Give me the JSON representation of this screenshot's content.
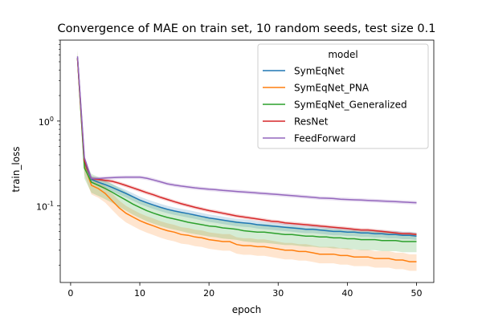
{
  "chart_data": {
    "type": "line",
    "title": "Convergence of MAE on train set, 10 random seeds, test size 0.1",
    "xlabel": "epoch",
    "ylabel": "train_loss",
    "yscale": "log",
    "xlim": [
      -1.5,
      52.5
    ],
    "ylim": [
      0.0125,
      9.0
    ],
    "x_ticks": [
      0,
      10,
      20,
      30,
      40,
      50
    ],
    "y_ticks": [
      {
        "value": 1.0,
        "label": "10^0"
      },
      {
        "value": 0.1,
        "label": "10^-1"
      }
    ],
    "grid": false,
    "legend": {
      "title": "model",
      "position": "top-right"
    },
    "x": [
      1,
      2,
      3,
      4,
      5,
      6,
      7,
      8,
      9,
      10,
      11,
      12,
      13,
      14,
      15,
      16,
      17,
      18,
      19,
      20,
      21,
      22,
      23,
      24,
      25,
      26,
      27,
      28,
      29,
      30,
      31,
      32,
      33,
      34,
      35,
      36,
      37,
      38,
      39,
      40,
      41,
      42,
      43,
      44,
      45,
      46,
      47,
      48,
      49,
      50
    ],
    "series": [
      {
        "name": "SymEqNet",
        "color": "#1f77b4",
        "values": [
          5.6,
          0.32,
          0.205,
          0.19,
          0.178,
          0.165,
          0.152,
          0.14,
          0.128,
          0.117,
          0.109,
          0.102,
          0.096,
          0.091,
          0.087,
          0.084,
          0.081,
          0.078,
          0.075,
          0.072,
          0.07,
          0.068,
          0.066,
          0.064,
          0.063,
          0.062,
          0.06,
          0.059,
          0.058,
          0.057,
          0.056,
          0.055,
          0.054,
          0.053,
          0.053,
          0.052,
          0.051,
          0.05,
          0.05,
          0.049,
          0.049,
          0.048,
          0.048,
          0.047,
          0.047,
          0.046,
          0.046,
          0.045,
          0.045,
          0.044
        ]
      },
      {
        "name": "SymEqNet_PNA",
        "color": "#ff7f0e",
        "values": [
          5.4,
          0.3,
          0.175,
          0.16,
          0.14,
          0.115,
          0.095,
          0.082,
          0.074,
          0.067,
          0.062,
          0.058,
          0.054,
          0.051,
          0.049,
          0.046,
          0.045,
          0.043,
          0.042,
          0.04,
          0.039,
          0.038,
          0.038,
          0.035,
          0.034,
          0.034,
          0.033,
          0.033,
          0.032,
          0.031,
          0.03,
          0.03,
          0.029,
          0.029,
          0.028,
          0.027,
          0.027,
          0.027,
          0.026,
          0.026,
          0.025,
          0.025,
          0.025,
          0.024,
          0.024,
          0.024,
          0.023,
          0.023,
          0.022,
          0.022
        ]
      },
      {
        "name": "SymEqNet_Generalized",
        "color": "#2ca02c",
        "values": [
          5.5,
          0.28,
          0.19,
          0.175,
          0.16,
          0.145,
          0.13,
          0.117,
          0.105,
          0.096,
          0.088,
          0.082,
          0.077,
          0.073,
          0.07,
          0.067,
          0.064,
          0.062,
          0.06,
          0.058,
          0.057,
          0.055,
          0.054,
          0.053,
          0.051,
          0.05,
          0.049,
          0.049,
          0.048,
          0.047,
          0.046,
          0.046,
          0.045,
          0.044,
          0.044,
          0.043,
          0.043,
          0.042,
          0.042,
          0.041,
          0.041,
          0.04,
          0.04,
          0.04,
          0.039,
          0.039,
          0.039,
          0.038,
          0.038,
          0.038
        ]
      },
      {
        "name": "ResNet",
        "color": "#d62728",
        "values": [
          5.5,
          0.34,
          0.21,
          0.205,
          0.2,
          0.195,
          0.185,
          0.174,
          0.163,
          0.153,
          0.143,
          0.135,
          0.126,
          0.119,
          0.112,
          0.106,
          0.101,
          0.096,
          0.092,
          0.088,
          0.085,
          0.082,
          0.079,
          0.076,
          0.074,
          0.072,
          0.07,
          0.068,
          0.066,
          0.065,
          0.063,
          0.062,
          0.061,
          0.06,
          0.059,
          0.058,
          0.057,
          0.056,
          0.055,
          0.054,
          0.053,
          0.052,
          0.052,
          0.051,
          0.05,
          0.049,
          0.048,
          0.047,
          0.047,
          0.046
        ]
      },
      {
        "name": "FeedForward",
        "color": "#9467bd",
        "values": [
          5.8,
          0.37,
          0.21,
          0.21,
          0.213,
          0.215,
          0.217,
          0.218,
          0.218,
          0.218,
          0.212,
          0.202,
          0.192,
          0.182,
          0.176,
          0.171,
          0.167,
          0.163,
          0.16,
          0.157,
          0.155,
          0.152,
          0.15,
          0.148,
          0.146,
          0.144,
          0.142,
          0.14,
          0.138,
          0.136,
          0.134,
          0.132,
          0.13,
          0.128,
          0.126,
          0.124,
          0.123,
          0.122,
          0.12,
          0.119,
          0.118,
          0.117,
          0.116,
          0.115,
          0.114,
          0.113,
          0.112,
          0.111,
          0.11,
          0.109
        ]
      }
    ]
  }
}
